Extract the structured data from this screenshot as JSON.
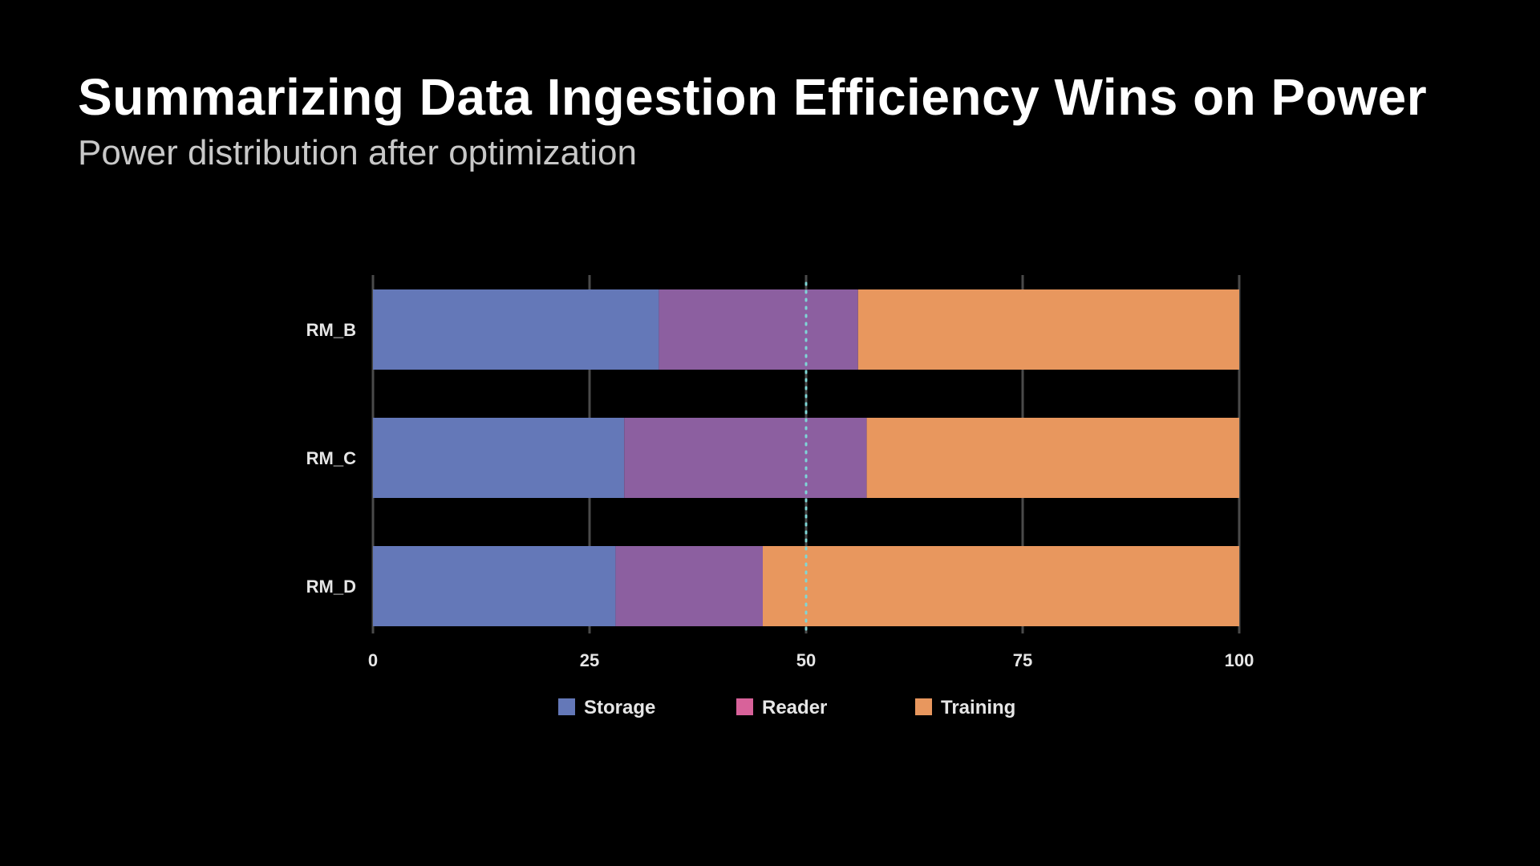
{
  "header": {
    "title": "Summarizing Data Ingestion Efficiency Wins on Power",
    "subtitle": "Power distribution after optimization"
  },
  "chart_data": {
    "type": "bar",
    "orientation": "horizontal",
    "stacked": true,
    "categories": [
      "RM_B",
      "RM_C",
      "RM_D"
    ],
    "series": [
      {
        "name": "Storage",
        "color": "#6478b8",
        "legend_color": "#6478b8",
        "values": [
          33,
          29,
          28
        ]
      },
      {
        "name": "Reader",
        "color": "#8c5fa0",
        "legend_color": "#d8629a",
        "values": [
          23,
          28,
          17
        ]
      },
      {
        "name": "Training",
        "color": "#e8975e",
        "legend_color": "#e8975e",
        "values": [
          44,
          43,
          55
        ]
      }
    ],
    "xlim": [
      0,
      100
    ],
    "xticks": [
      0,
      25,
      50,
      75,
      100
    ],
    "reference_line": {
      "value": 50,
      "color": "#7fd6d6",
      "style": "dotted"
    },
    "grid": true,
    "legend_position": "bottom-center",
    "title": "Summarizing Data Ingestion Efficiency Wins on Power",
    "xlabel": "",
    "ylabel": ""
  }
}
